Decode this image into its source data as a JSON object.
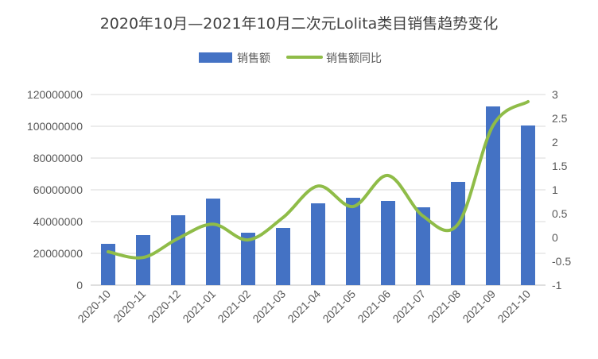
{
  "chart_data": {
    "type": "bar",
    "title": "2020年10月—2021年10月二次元Lolita类目销售趋势变化",
    "categories": [
      "2020-10",
      "2020-11",
      "2020-12",
      "2021-01",
      "2021-02",
      "2021-03",
      "2021-04",
      "2021-05",
      "2021-06",
      "2021-07",
      "2021-08",
      "2021-09",
      "2021-10"
    ],
    "series": [
      {
        "name": "销售额",
        "type": "bar",
        "axis": "left",
        "color": "#4472c4",
        "values": [
          26000000,
          31500000,
          44000000,
          54500000,
          33000000,
          36000000,
          51500000,
          55000000,
          53000000,
          49000000,
          65000000,
          112500000,
          100500000
        ]
      },
      {
        "name": "销售额同比",
        "type": "line",
        "axis": "right",
        "smooth": true,
        "color": "#8fbc48",
        "values": [
          -0.3,
          -0.42,
          -0.02,
          0.28,
          -0.05,
          0.42,
          1.08,
          0.65,
          1.3,
          0.45,
          0.28,
          2.35,
          2.85
        ]
      }
    ],
    "y_left": {
      "min": 0,
      "max": 120000000,
      "step": 20000000,
      "ticks": [
        "0",
        "20000000",
        "40000000",
        "60000000",
        "80000000",
        "100000000",
        "120000000"
      ]
    },
    "y_right": {
      "min": -1,
      "max": 3,
      "step": 0.5,
      "ticks": [
        "-1",
        "-0.5",
        "0",
        "0.5",
        "1",
        "1.5",
        "2",
        "2.5",
        "3"
      ]
    },
    "grid": true,
    "legend_position": "top"
  }
}
